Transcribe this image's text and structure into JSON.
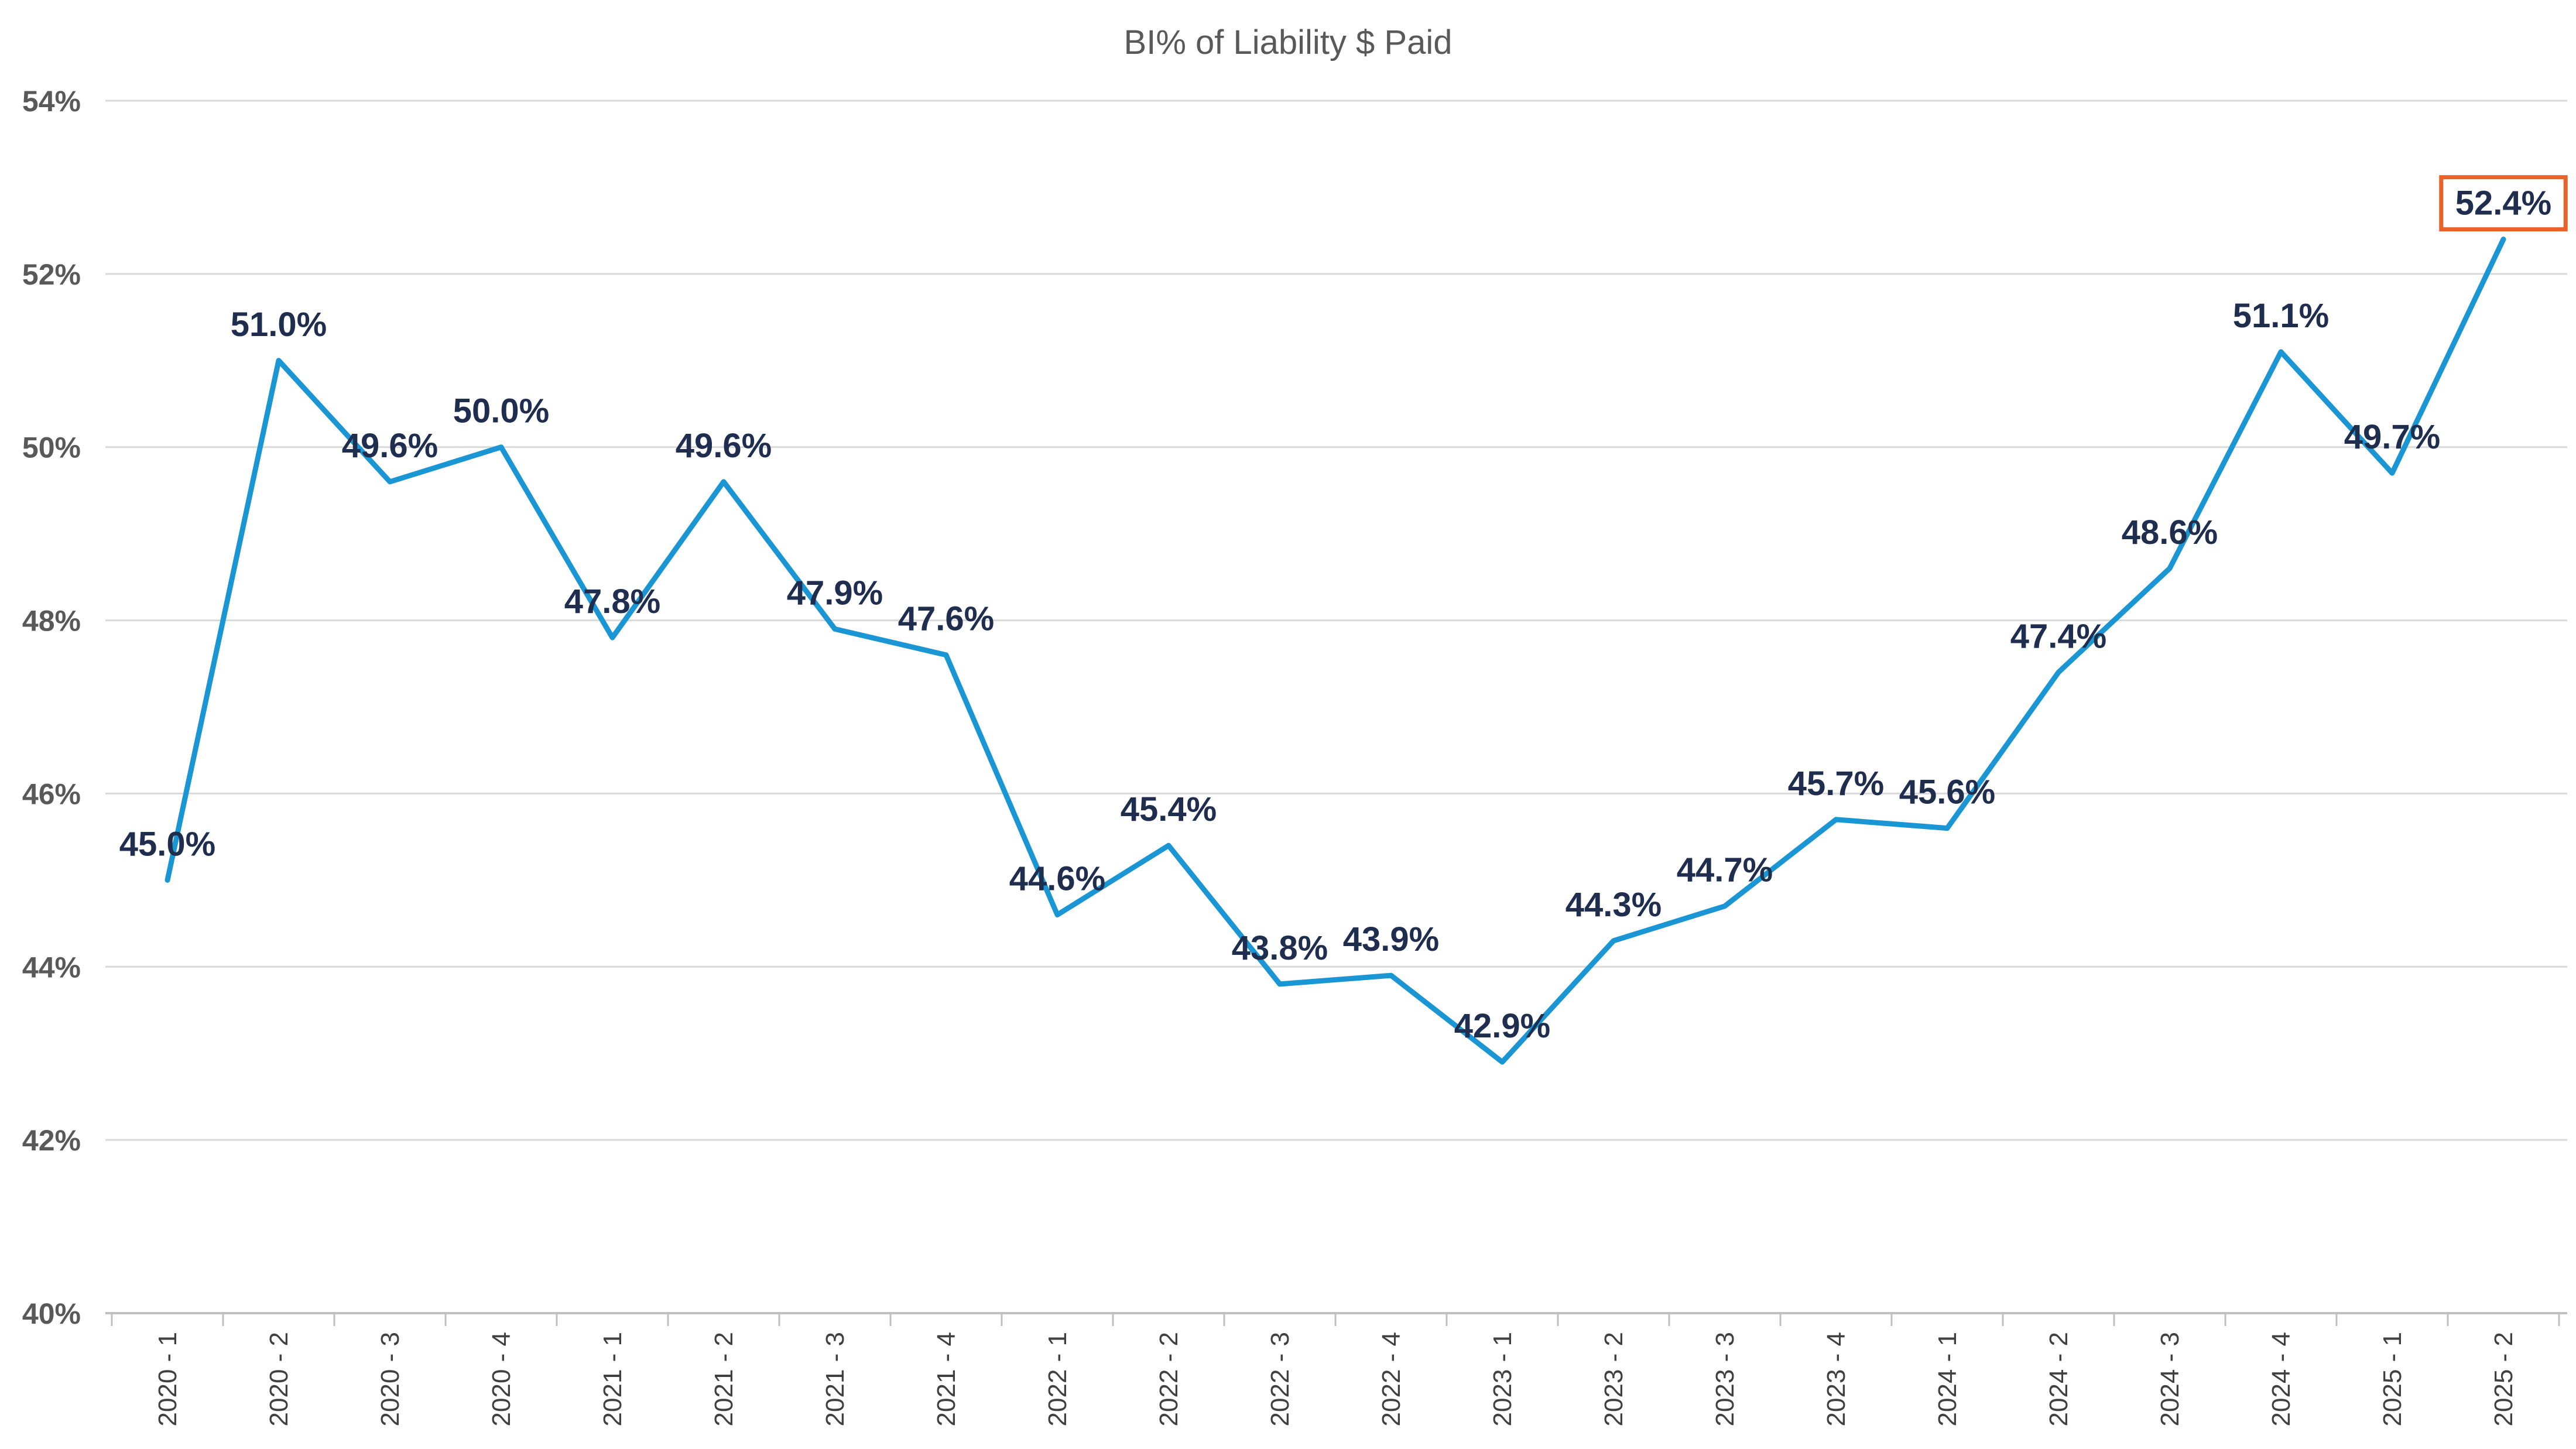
{
  "chart_data": {
    "type": "line",
    "title": "BI% of Liability $ Paid",
    "xlabel": "",
    "ylabel": "",
    "ylim": [
      40,
      54
    ],
    "y_ticks": [
      40,
      42,
      44,
      46,
      48,
      50,
      52,
      54
    ],
    "y_tick_labels": [
      "40%",
      "42%",
      "44%",
      "46%",
      "48%",
      "50%",
      "52%",
      "54%"
    ],
    "grid": true,
    "legend": "none",
    "categories": [
      "2020 - 1",
      "2020 - 2",
      "2020 - 3",
      "2020 - 4",
      "2021 - 1",
      "2021 - 2",
      "2021 - 3",
      "2021 - 4",
      "2022 - 1",
      "2022 - 2",
      "2022 - 3",
      "2022 - 4",
      "2023 - 1",
      "2023 - 2",
      "2023 - 3",
      "2023 - 4",
      "2024 - 1",
      "2024 - 2",
      "2024 - 3",
      "2024 - 4",
      "2025 - 1",
      "2025 - 2"
    ],
    "series": [
      {
        "values": [
          45.0,
          51.0,
          49.6,
          50.0,
          47.8,
          49.6,
          47.9,
          47.6,
          44.6,
          45.4,
          43.8,
          43.9,
          42.9,
          44.3,
          44.7,
          45.7,
          45.6,
          47.4,
          48.6,
          51.1,
          49.7,
          52.4
        ],
        "labels": [
          "45.0%",
          "51.0%",
          "49.6%",
          "50.0%",
          "47.8%",
          "49.6%",
          "47.9%",
          "47.6%",
          "44.6%",
          "45.4%",
          "43.8%",
          "43.9%",
          "42.9%",
          "44.3%",
          "44.7%",
          "45.7%",
          "45.6%",
          "47.4%",
          "48.6%",
          "51.1%",
          "49.7%",
          "52.4%"
        ],
        "color": "#1a96d4"
      }
    ],
    "highlight": {
      "index": 21,
      "color": "#e8622a"
    },
    "text_color": "#1f2d4e"
  }
}
